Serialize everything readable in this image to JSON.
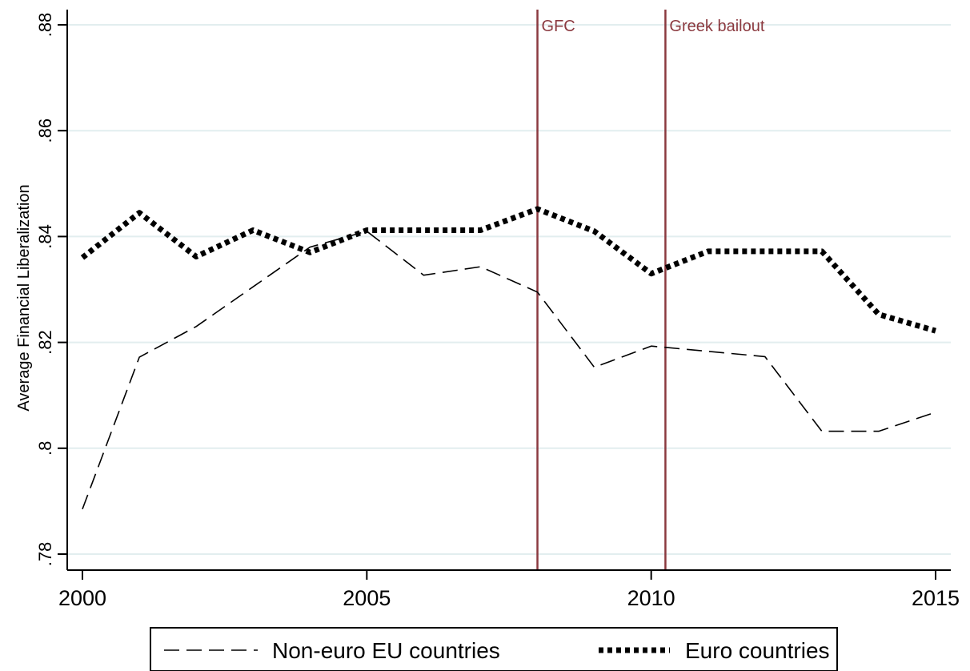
{
  "chart_data": {
    "type": "line",
    "title": "",
    "xlabel": "",
    "ylabel": "Average Financial Liberalization",
    "xlim": [
      2000,
      2015
    ],
    "ylim": [
      0.78,
      0.88
    ],
    "x_ticks": [
      2000,
      2005,
      2010,
      2015
    ],
    "x_tick_labels": [
      "2000",
      "2005",
      "2010",
      "2015"
    ],
    "y_ticks": [
      0.78,
      0.8,
      0.82,
      0.84,
      0.86,
      0.88
    ],
    "y_tick_labels": [
      ".78",
      ".8",
      ".82",
      ".84",
      ".86",
      ".88"
    ],
    "grid": true,
    "legend_position": "bottom",
    "colors": {
      "grid": "#e2eeef",
      "annotation": "#8b3a40",
      "series": "#000000"
    },
    "x": [
      2000,
      2001,
      2002,
      2003,
      2004,
      2005,
      2006,
      2007,
      2008,
      2009,
      2010,
      2011,
      2012,
      2013,
      2014,
      2015
    ],
    "series": [
      {
        "name": "Non-euro EU countries",
        "style": "dashed",
        "values": [
          0.7885,
          0.8172,
          0.823,
          0.8305,
          0.838,
          0.841,
          0.8327,
          0.8343,
          0.8295,
          0.8153,
          0.8193,
          0.8183,
          0.8173,
          0.8032,
          0.8032,
          0.8068
        ]
      },
      {
        "name": "Euro countries",
        "style": "dotted",
        "values": [
          0.836,
          0.8445,
          0.8362,
          0.8412,
          0.837,
          0.8412,
          0.8412,
          0.8412,
          0.8452,
          0.841,
          0.833,
          0.8372,
          0.8372,
          0.8372,
          0.8253,
          0.8222
        ]
      }
    ],
    "annotations": [
      {
        "x": 2008.0,
        "label": "GFC"
      },
      {
        "x": 2010.25,
        "label": "Greek bailout"
      }
    ]
  }
}
